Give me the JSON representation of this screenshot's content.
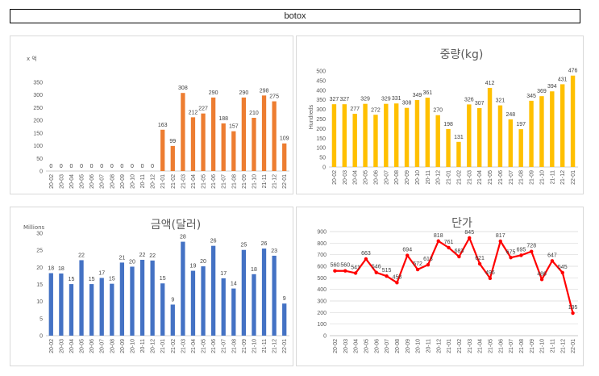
{
  "title": "botox",
  "colors": {
    "orange": "#ed7d31",
    "gold": "#ffc000",
    "blue": "#4472c4",
    "red": "#ff0000"
  },
  "chart_data": [
    {
      "id": "c1",
      "type": "bar",
      "color": "#ed7d31",
      "title": "",
      "ylabel": "x 억",
      "ylim": [
        0,
        350
      ],
      "yticks": [
        0,
        50,
        100,
        150,
        200,
        250,
        300,
        350
      ],
      "grid": false,
      "categories": [
        "20-02",
        "20-03",
        "20-04",
        "20-05",
        "20-06",
        "20-07",
        "20-08",
        "20-09",
        "20-10",
        "20-11",
        "20-12",
        "21-01",
        "21-02",
        "21-03",
        "21-04",
        "21-05",
        "21-06",
        "21-07",
        "21-08",
        "21-09",
        "21-10",
        "21-11",
        "21-12",
        "22-01"
      ],
      "values": [
        0,
        0,
        0,
        0,
        0,
        0,
        0,
        0,
        0,
        0,
        0,
        163,
        99,
        308,
        212,
        227,
        290,
        188,
        157,
        290,
        210,
        298,
        275,
        109
      ]
    },
    {
      "id": "c2",
      "type": "bar",
      "color": "#ffc000",
      "title": "중량(kg)",
      "ylabel": "Hundreds",
      "ylim": [
        0,
        500
      ],
      "yticks": [
        0,
        50,
        100,
        150,
        200,
        250,
        300,
        350,
        400,
        450,
        500
      ],
      "grid": false,
      "categories": [
        "20-02",
        "20-03",
        "20-04",
        "20-05",
        "20-06",
        "20-07",
        "20-08",
        "20-09",
        "20-10",
        "20-11",
        "20-12",
        "21-01",
        "21-02",
        "21-03",
        "21-04",
        "21-05",
        "21-06",
        "21-07",
        "21-08",
        "21-09",
        "21-10",
        "21-11",
        "21-12",
        "22-01"
      ],
      "values": [
        327,
        327,
        277,
        329,
        272,
        329,
        331,
        308,
        349,
        361,
        270,
        198,
        131,
        326,
        307,
        412,
        321,
        248,
        197,
        345,
        369,
        394,
        431,
        476
      ]
    },
    {
      "id": "c3",
      "type": "bar",
      "color": "#4472c4",
      "title": "금액(달러)",
      "ylabel": "Millions",
      "ylim": [
        0,
        30
      ],
      "yticks": [
        0,
        5,
        10,
        15,
        20,
        25,
        30
      ],
      "grid": false,
      "categories": [
        "20-02",
        "20-03",
        "20-04",
        "20-05",
        "20-06",
        "20-07",
        "20-08",
        "20-09",
        "20-10",
        "20-11",
        "20-12",
        "21-01",
        "21-02",
        "21-03",
        "21-04",
        "21-05",
        "21-06",
        "21-07",
        "21-08",
        "21-09",
        "21-10",
        "21-11",
        "21-12",
        "22-01"
      ],
      "values": [
        18.3,
        18.2,
        15.1,
        22.1,
        15.1,
        16.9,
        15.2,
        21.4,
        20.2,
        22.2,
        22.0,
        15.3,
        9.1,
        27.5,
        19.0,
        20.3,
        26.3,
        16.8,
        13.8,
        25.1,
        18.0,
        25.5,
        23.4,
        9.4
      ],
      "data_labels": [
        "18",
        "18",
        "15",
        "22",
        "15",
        "17",
        "15",
        "21",
        "20",
        "22",
        "22",
        "15",
        "9",
        "28",
        "19",
        "20",
        "26",
        "17",
        "14",
        "25",
        "18",
        "26",
        "23",
        "9"
      ]
    },
    {
      "id": "c4",
      "type": "line",
      "color": "#ff0000",
      "title": "단가",
      "ylabel": "",
      "ylim": [
        0,
        900
      ],
      "yticks": [
        0,
        100,
        200,
        300,
        400,
        500,
        600,
        700,
        800,
        900
      ],
      "grid": true,
      "categories": [
        "20-02",
        "20-03",
        "20-04",
        "20-05",
        "20-06",
        "20-07",
        "20-08",
        "20-09",
        "20-10",
        "20-11",
        "20-12",
        "21-01",
        "21-02",
        "21-03",
        "21-04",
        "21-05",
        "21-06",
        "21-07",
        "21-08",
        "21-09",
        "21-10",
        "21-11",
        "21-12",
        "22-01"
      ],
      "values": [
        560,
        560,
        541,
        663,
        546,
        515,
        458,
        694,
        572,
        613,
        818,
        761,
        683,
        845,
        621,
        496,
        817,
        675,
        695,
        728,
        486,
        647,
        545,
        195
      ]
    }
  ]
}
